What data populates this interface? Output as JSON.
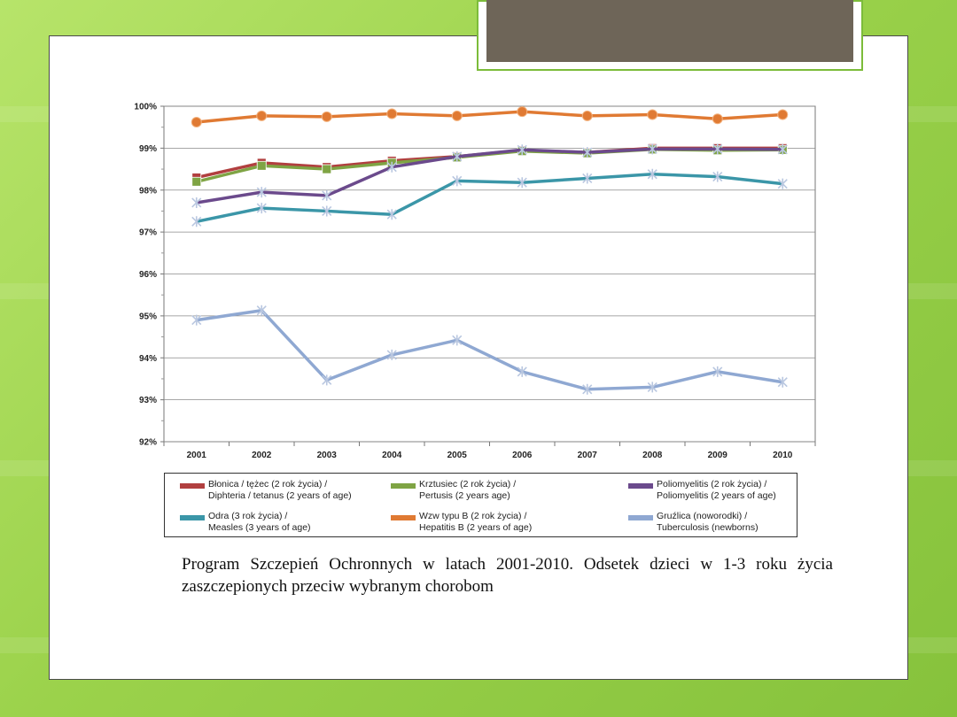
{
  "chart_data": {
    "type": "line",
    "categories": [
      "2001",
      "2002",
      "2003",
      "2004",
      "2005",
      "2006",
      "2007",
      "2008",
      "2009",
      "2010"
    ],
    "ylim": [
      92,
      100
    ],
    "yticks": [
      "92%",
      "93%",
      "94%",
      "95%",
      "96%",
      "97%",
      "98%",
      "99%",
      "100%"
    ],
    "grid": true,
    "legend_position": "bottom",
    "series": [
      {
        "name_line1": "Błonica / tężec (2 rok życia) /",
        "name_line2": "Diphteria / tetanus (2 years of age)",
        "color": "#b13f3f",
        "values": [
          98.3,
          98.65,
          98.55,
          98.7,
          98.8,
          98.95,
          98.9,
          99.0,
          99.0,
          99.0
        ]
      },
      {
        "name_line1": "Krztusiec (2 rok życia) /",
        "name_line2": "Pertusis (2 years age)",
        "color": "#7fa444",
        "values": [
          98.2,
          98.58,
          98.5,
          98.65,
          98.78,
          98.93,
          98.88,
          98.97,
          98.95,
          98.96
        ]
      },
      {
        "name_line1": "Poliomyelitis (2 rok życia) /",
        "name_line2": "Poliomyelitis (2 years of age)",
        "color": "#6b4a8c",
        "values": [
          97.7,
          97.95,
          97.87,
          98.55,
          98.8,
          98.96,
          98.9,
          98.98,
          98.98,
          98.97
        ]
      },
      {
        "name_line1": "Odra (3 rok życia) /",
        "name_line2": "Measles (3 years of age)",
        "color": "#3b96a8",
        "values": [
          97.25,
          97.57,
          97.5,
          97.42,
          98.22,
          98.18,
          98.28,
          98.38,
          98.32,
          98.15
        ]
      },
      {
        "name_line1": "Wzw typu B (2 rok życia) /",
        "name_line2": "Hepatitis B (2 years of age)",
        "color": "#e07a33",
        "values": [
          99.62,
          99.77,
          99.75,
          99.82,
          99.77,
          99.87,
          99.77,
          99.8,
          99.7,
          99.8
        ]
      },
      {
        "name_line1": "Gruźlica (noworodki) /",
        "name_line2": "Tuberculosis (newborns)",
        "color": "#8fa8d2",
        "values": [
          94.9,
          95.13,
          93.47,
          94.07,
          94.42,
          93.67,
          93.25,
          93.3,
          93.67,
          93.42
        ]
      }
    ]
  },
  "caption": "Program Szczepień Ochronnych w latach 2001-2010. Odsetek dzieci w 1-3 roku życia zaszczepionych przeciw wybranym chorobom"
}
